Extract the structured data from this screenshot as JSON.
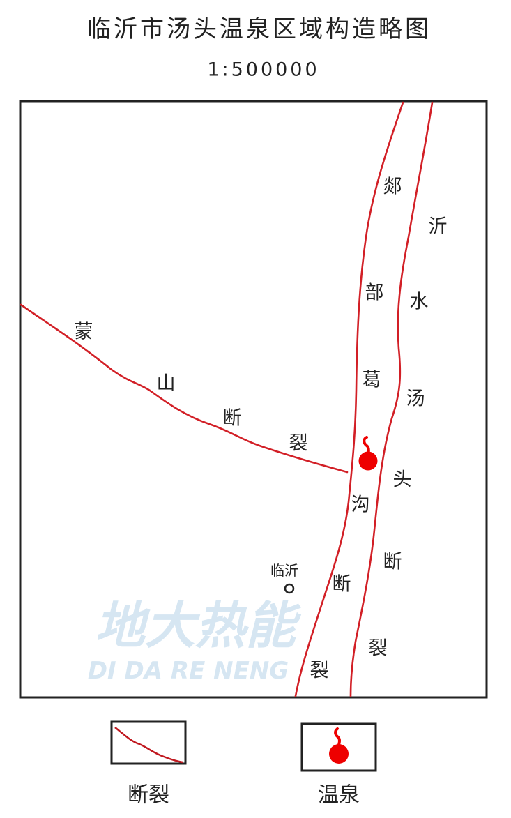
{
  "title": "临沂市汤头温泉区域构造略图",
  "scale": "1:500000",
  "colors": {
    "fault": "#d21f26",
    "hot_spring": "#ee0000",
    "frame": "#222222",
    "watermark": "#d6e6f2"
  },
  "faults": {
    "west": {
      "chars": [
        "郯",
        "部",
        "葛",
        "沟",
        "断",
        "裂"
      ]
    },
    "east": {
      "chars": [
        "沂",
        "水",
        "汤",
        "头",
        "断",
        "裂"
      ]
    },
    "mengshan": {
      "chars": [
        "蒙",
        "山",
        "断",
        "裂"
      ]
    }
  },
  "city": {
    "name": "临沂",
    "icon": "circle-icon"
  },
  "hot_spring": {
    "icon": "hot-spring-icon"
  },
  "watermark": {
    "cn": "地大热能",
    "en": "DI DA RE NENG"
  },
  "legend": [
    {
      "label": "断裂",
      "icon": "fault-line-icon"
    },
    {
      "label": "温泉",
      "icon": "hot-spring-icon"
    }
  ]
}
